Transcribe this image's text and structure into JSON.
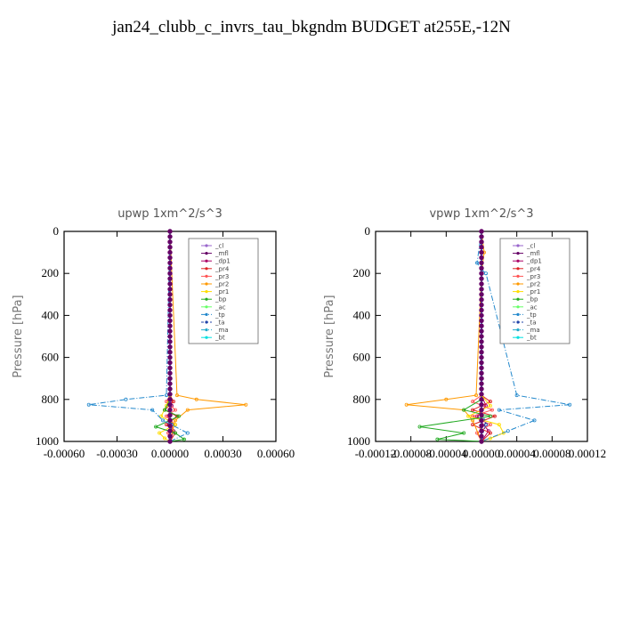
{
  "title": "jan24_clubb_c_invrs_tau_bkgndm  BUDGET at255E,-12N",
  "legend_labels": [
    "_cl",
    "_mfl",
    "_dp1",
    "_pr4",
    "_pr3",
    "_pr2",
    "_pr1",
    "_bp",
    "_ac",
    "_tp",
    "_ta",
    "_ma",
    "_bt"
  ],
  "series_colors": [
    "#9966cc",
    "#660066",
    "#aa0066",
    "#dd2222",
    "#ff5555",
    "#ff9900",
    "#ffdd00",
    "#22aa22",
    "#66ff66",
    "#2288cc",
    "#2244aa",
    "#22aacc",
    "#00e0e0"
  ],
  "chart_data": [
    {
      "type": "line",
      "title": "upwp   1xm^2/s^3",
      "ylabel": "Pressure [hPa]",
      "xlim": [
        -0.0006,
        0.0006
      ],
      "ylim": [
        1000,
        0
      ],
      "x_ticks": [
        "-0.00060",
        "-0.00030",
        "0.00000",
        "0.00030",
        "0.00060"
      ],
      "x_tick_values": [
        -0.0006,
        -0.0003,
        0,
        0.0003,
        0.0006
      ],
      "y_ticks": [
        "0",
        "200",
        "400",
        "600",
        "800",
        "1000"
      ],
      "y_tick_values": [
        0,
        200,
        400,
        600,
        800,
        1000
      ],
      "series": [
        {
          "name": "_cl",
          "x": [
            0,
            0,
            0,
            0
          ],
          "y": [
            0,
            700,
            900,
            1000
          ]
        },
        {
          "name": "_mfl",
          "x": [
            0,
            0,
            0,
            0
          ],
          "y": [
            0,
            700,
            900,
            1000
          ]
        },
        {
          "name": "_dp1",
          "x": [
            0,
            0,
            1e-05,
            -1e-05,
            2e-05,
            0
          ],
          "y": [
            0,
            780,
            830,
            880,
            950,
            1000
          ]
        },
        {
          "name": "_pr4",
          "x": [
            0,
            0,
            2e-05,
            -3e-05,
            4e-05,
            -2e-05,
            3e-05,
            0
          ],
          "y": [
            0,
            780,
            810,
            850,
            880,
            920,
            960,
            1000
          ]
        },
        {
          "name": "_pr3",
          "x": [
            0,
            0,
            -2e-05,
            3e-05,
            -2e-05,
            3e-05,
            -1e-05,
            0
          ],
          "y": [
            0,
            780,
            810,
            850,
            880,
            920,
            960,
            1000
          ]
        },
        {
          "name": "_pr2",
          "x": [
            0,
            4e-05,
            0.00015,
            0.00043,
            0.0001,
            3e-05,
            0
          ],
          "y": [
            0,
            780,
            800,
            825,
            850,
            900,
            1000
          ]
        },
        {
          "name": "_pr1",
          "x": [
            0,
            0,
            -2e-05,
            -5e-05,
            3e-05,
            -6e-05,
            -3e-05,
            0
          ],
          "y": [
            0,
            780,
            830,
            880,
            920,
            960,
            985,
            1000
          ]
        },
        {
          "name": "_bp",
          "x": [
            0,
            0,
            -3e-05,
            5e-05,
            -8e-05,
            3e-05,
            8e-05,
            0
          ],
          "y": [
            0,
            800,
            850,
            880,
            930,
            960,
            990,
            1000
          ]
        },
        {
          "name": "_ac",
          "x": [
            0,
            0,
            0,
            0
          ],
          "y": [
            0,
            900,
            950,
            1000
          ]
        },
        {
          "name": "_tp",
          "x": [
            0,
            -2e-05,
            -0.00025,
            -0.00046,
            -0.0001,
            -4e-05,
            0.0001,
            0
          ],
          "y": [
            0,
            780,
            800,
            825,
            850,
            900,
            960,
            1000
          ]
        },
        {
          "name": "_ta",
          "x": [
            0,
            0,
            1e-05,
            0,
            0
          ],
          "y": [
            0,
            850,
            920,
            980,
            1000
          ]
        },
        {
          "name": "_ma",
          "x": [
            0,
            0,
            0,
            0
          ],
          "y": [
            0,
            800,
            950,
            1000
          ]
        },
        {
          "name": "_bt",
          "x": [
            0,
            0,
            0
          ],
          "y": [
            0,
            900,
            1000
          ]
        }
      ]
    },
    {
      "type": "line",
      "title": "vpwp   1xm^2/s^3",
      "ylabel": "Pressure [hPa]",
      "xlim": [
        -0.00012,
        0.00012
      ],
      "ylim": [
        1000,
        0
      ],
      "x_ticks": [
        "-0.00012",
        "-0.00008",
        "-0.00004",
        "0.00000",
        "0.00004",
        "0.00008",
        "0.00012"
      ],
      "x_tick_values": [
        -0.00012,
        -8e-05,
        -4e-05,
        0,
        4e-05,
        8e-05,
        0.00012
      ],
      "y_ticks": [
        "0",
        "200",
        "400",
        "600",
        "800",
        "1000"
      ],
      "y_tick_values": [
        0,
        200,
        400,
        600,
        800,
        1000
      ],
      "series": [
        {
          "name": "_cl",
          "x": [
            0,
            0,
            0,
            0
          ],
          "y": [
            0,
            700,
            900,
            1000
          ]
        },
        {
          "name": "_mfl",
          "x": [
            0,
            0,
            0,
            0
          ],
          "y": [
            0,
            700,
            900,
            1000
          ]
        },
        {
          "name": "_dp1",
          "x": [
            0,
            0,
            5e-06,
            -5e-06,
            8e-06,
            0
          ],
          "y": [
            0,
            780,
            830,
            880,
            950,
            1000
          ]
        },
        {
          "name": "_pr4",
          "x": [
            0,
            0,
            1e-05,
            -1e-05,
            1.5e-05,
            -1e-05,
            1e-05,
            0
          ],
          "y": [
            0,
            780,
            810,
            850,
            880,
            920,
            960,
            1000
          ]
        },
        {
          "name": "_pr3",
          "x": [
            0,
            0,
            -1e-05,
            1.2e-05,
            -1e-05,
            1e-05,
            -5e-06,
            0
          ],
          "y": [
            0,
            780,
            810,
            850,
            880,
            920,
            960,
            1000
          ]
        },
        {
          "name": "_pr2",
          "x": [
            0,
            3e-06,
            0,
            -6e-06,
            -4e-05,
            -8.5e-05,
            -2e-05,
            -1e-05,
            0
          ],
          "y": [
            0,
            100,
            200,
            780,
            800,
            825,
            850,
            900,
            1000
          ]
        },
        {
          "name": "_pr1",
          "x": [
            0,
            0,
            1e-05,
            -1.5e-05,
            2e-05,
            2.5e-05,
            1e-05,
            0
          ],
          "y": [
            0,
            780,
            830,
            880,
            920,
            960,
            985,
            1000
          ]
        },
        {
          "name": "_bp",
          "x": [
            0,
            0,
            -2e-05,
            1e-05,
            -7e-05,
            -2e-05,
            -5e-05,
            0
          ],
          "y": [
            0,
            800,
            850,
            880,
            930,
            960,
            990,
            1000
          ]
        },
        {
          "name": "_ac",
          "x": [
            0,
            0,
            0,
            0
          ],
          "y": [
            0,
            900,
            950,
            1000
          ]
        },
        {
          "name": "_tp",
          "x": [
            0,
            -5e-06,
            0,
            5e-06,
            4e-05,
            0.0001,
            2e-05,
            6e-05,
            3e-05,
            0
          ],
          "y": [
            0,
            150,
            180,
            200,
            780,
            825,
            850,
            900,
            950,
            1000
          ]
        },
        {
          "name": "_ta",
          "x": [
            0,
            0,
            5e-06,
            0,
            0
          ],
          "y": [
            0,
            850,
            920,
            980,
            1000
          ]
        },
        {
          "name": "_ma",
          "x": [
            0,
            0,
            0,
            0
          ],
          "y": [
            0,
            800,
            950,
            1000
          ]
        },
        {
          "name": "_bt",
          "x": [
            0,
            0,
            0
          ],
          "y": [
            0,
            900,
            1000
          ]
        }
      ]
    }
  ]
}
